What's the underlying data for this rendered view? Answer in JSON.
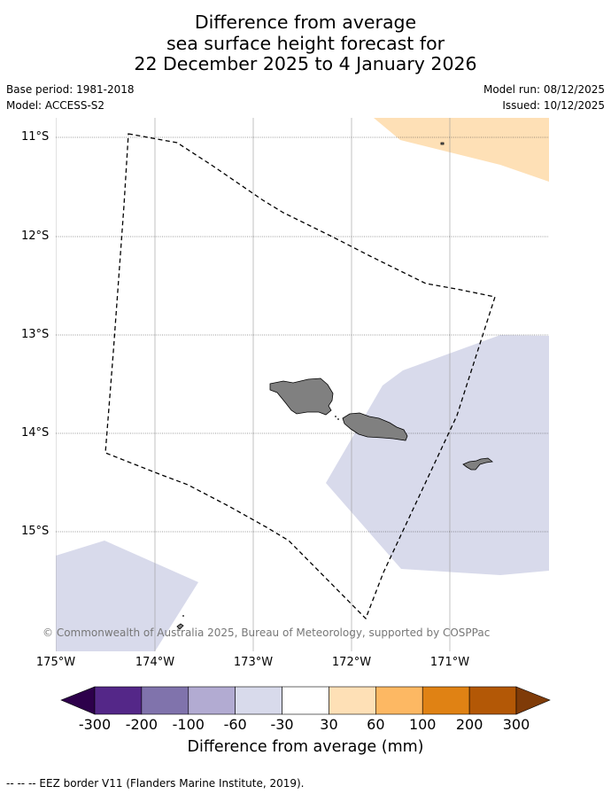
{
  "title": {
    "line1": "Difference from average",
    "line2": "sea surface height forecast for",
    "line3": "22 December 2025 to 4 January 2026"
  },
  "meta": {
    "base_period": "Base period: 1981-2018",
    "model": "Model: ACCESS-S2",
    "model_run": "Model run: 08/12/2025",
    "issued": "Issued: 10/12/2025"
  },
  "map": {
    "lat_labels": [
      "11°S",
      "12°S",
      "13°S",
      "14°S",
      "15°S"
    ],
    "lon_labels": [
      "175°W",
      "174°W",
      "173°W",
      "172°W",
      "171°W"
    ],
    "copyright": "© Commonwealth of Australia 2025, Bureau of Meteorology, supported by COSPPac",
    "land_color": "#808080",
    "eez_line_color": "#000000"
  },
  "colorbar": {
    "ticks": [
      "-300",
      "-200",
      "-100",
      "-60",
      "-30",
      "30",
      "60",
      "100",
      "200",
      "300"
    ],
    "colors": [
      "#2d004b",
      "#542788",
      "#8073ac",
      "#b2abd2",
      "#d8daeb",
      "#ffffff",
      "#fee0b6",
      "#fdb863",
      "#e08214",
      "#b35806",
      "#7f3b08"
    ],
    "label": "Difference from average (mm)"
  },
  "footer": "--  --  -- EEZ border V11 (Flanders Marine Institute, 2019)."
}
